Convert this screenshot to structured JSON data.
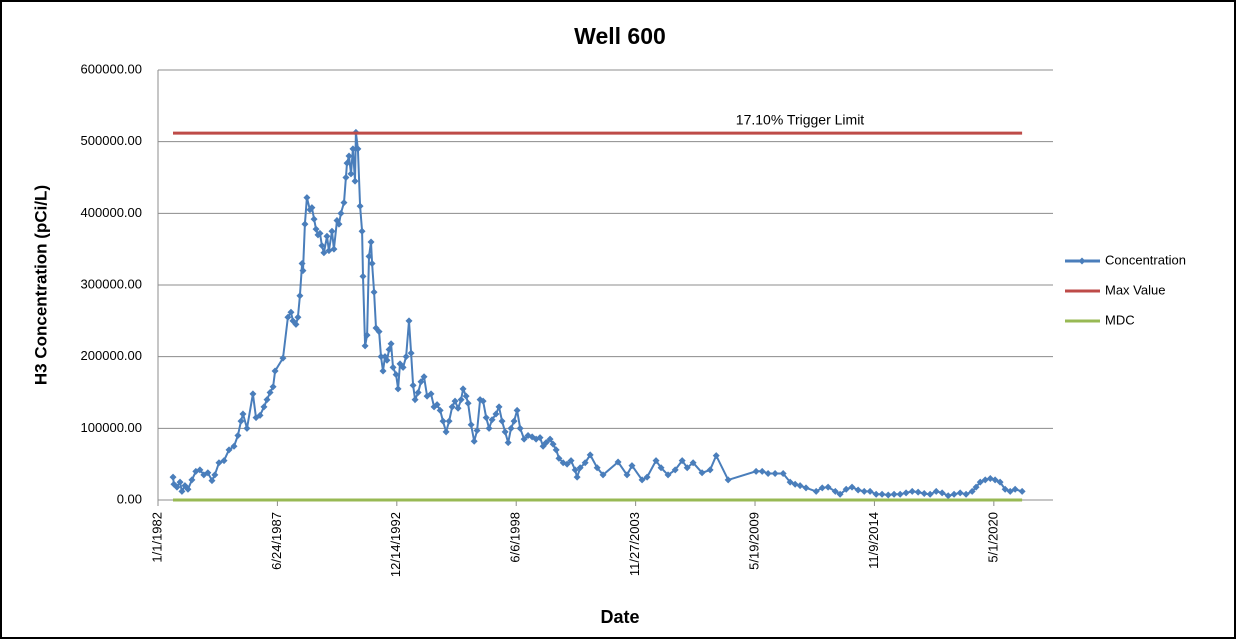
{
  "chart_data": {
    "type": "line",
    "title": "Well 600",
    "x_label": "Date",
    "y_label": "H3 Concentration (pCi/L)",
    "annotation": "17.10% Trigger Limit",
    "grid": true,
    "legend": "right",
    "xlim": [
      "1982-01-01",
      "2023-01-17"
    ],
    "xticks": [
      {
        "value": "1982-01-01",
        "label": "1/1/1982"
      },
      {
        "value": "1987-06-24",
        "label": "6/24/1987"
      },
      {
        "value": "1992-12-14",
        "label": "12/14/1992"
      },
      {
        "value": "1998-06-06",
        "label": "6/6/1998"
      },
      {
        "value": "2003-11-27",
        "label": "11/27/2003"
      },
      {
        "value": "2009-05-19",
        "label": "5/19/2009"
      },
      {
        "value": "2014-11-09",
        "label": "11/9/2014"
      },
      {
        "value": "2020-05-01",
        "label": "5/1/2020"
      }
    ],
    "ylim": [
      0,
      600000
    ],
    "yticks": [
      {
        "value": 0,
        "label": "0.00"
      },
      {
        "value": 100000,
        "label": "100000.00"
      },
      {
        "value": 200000,
        "label": "200000.00"
      },
      {
        "value": 300000,
        "label": "300000.00"
      },
      {
        "value": 400000,
        "label": "400000.00"
      },
      {
        "value": 500000,
        "label": "500000.00"
      },
      {
        "value": 600000,
        "label": "600000.00"
      }
    ],
    "series": [
      {
        "name": "Concentration",
        "color": "#4a7ebb",
        "markers": true,
        "x": [
          "1982-09-10",
          "1982-09-25",
          "1982-11-15",
          "1983-01-05",
          "1983-02-06",
          "1983-03-28",
          "1983-05-18",
          "1983-07-23",
          "1983-09-27",
          "1983-12-04",
          "1984-02-08",
          "1984-04-15",
          "1984-06-23",
          "1984-08-10",
          "1984-10-18",
          "1985-01-11",
          "1985-04-05",
          "1985-06-27",
          "1985-09-01",
          "1985-10-22",
          "1985-11-24",
          "1986-01-30",
          "1986-05-10",
          "1986-07-01",
          "1986-09-06",
          "1986-11-11",
          "1987-01-01",
          "1987-02-21",
          "1987-04-13",
          "1987-05-16",
          "1987-09-25",
          "1987-12-17",
          "1988-02-06",
          "1988-03-10",
          "1988-04-30",
          "1988-06-02",
          "1988-07-05",
          "1988-08-10",
          "1988-08-25",
          "1988-09-27",
          "1988-10-30",
          "1988-12-20",
          "1989-01-22",
          "1989-02-27",
          "1989-04-01",
          "1989-05-04",
          "1989-06-06",
          "1989-07-09",
          "1989-08-11",
          "1989-10-01",
          "1989-11-03",
          "1989-12-24",
          "1990-01-26",
          "1990-03-18",
          "1990-04-20",
          "1990-05-23",
          "1990-07-13",
          "1990-08-15",
          "1990-09-02",
          "1990-10-05",
          "1990-11-07",
          "1990-12-10",
          "1991-01-14",
          "1991-01-29",
          "1991-03-03",
          "1991-04-09",
          "1991-05-12",
          "1991-05-27",
          "1991-07-02",
          "1991-08-04",
          "1991-09-06",
          "1991-10-09",
          "1991-10-27",
          "1991-11-29",
          "1992-01-01",
          "1992-02-21",
          "1992-03-25",
          "1992-04-27",
          "1992-05-30",
          "1992-07-02",
          "1992-08-07",
          "1992-09-09",
          "1992-10-12",
          "1992-12-02",
          "1993-01-04",
          "1993-02-06",
          "1993-03-29",
          "1993-05-19",
          "1993-07-06",
          "1993-08-11",
          "1993-09-13",
          "1993-10-16",
          "1993-12-06",
          "1994-01-23",
          "1994-03-15",
          "1994-05-05",
          "1994-07-10",
          "1994-08-30",
          "1994-10-20",
          "1994-12-10",
          "1995-01-27",
          "1995-03-19",
          "1995-05-09",
          "1995-06-29",
          "1995-08-16",
          "1995-10-06",
          "1995-11-26",
          "1995-12-29",
          "1996-02-18",
          "1996-03-22",
          "1996-05-12",
          "1996-07-02",
          "1996-08-19",
          "1996-10-09",
          "1996-11-29",
          "1997-01-19",
          "1997-03-08",
          "1997-04-28",
          "1997-07-02",
          "1997-08-22",
          "1997-10-12",
          "1997-12-02",
          "1998-01-22",
          "1998-03-11",
          "1998-05-01",
          "1998-06-21",
          "1998-08-11",
          "1998-10-16",
          "1998-12-21",
          "1999-02-28",
          "1999-05-05",
          "1999-07-10",
          "1999-08-30",
          "1999-10-20",
          "1999-12-25",
          "2000-02-14",
          "2000-04-05",
          "2000-05-22",
          "2000-07-31",
          "2000-10-05",
          "2000-12-10",
          "2001-02-17",
          "2001-03-22",
          "2001-05-12",
          "2001-08-04",
          "2001-10-27",
          "2002-02-21",
          "2002-05-30",
          "2003-02-06",
          "2003-07-06",
          "2003-09-27",
          "2004-03-14",
          "2004-06-06",
          "2004-11-03",
          "2005-01-26",
          "2005-05-23",
          "2005-09-20",
          "2006-01-15",
          "2006-04-09",
          "2006-07-17",
          "2006-12-14",
          "2007-04-28",
          "2007-08-08",
          "2008-02-24",
          "2009-06-06",
          "2009-09-16",
          "2009-12-24",
          "2010-04-20",
          "2010-09-02",
          "2010-12-28",
          "2011-03-22",
          "2011-06-13",
          "2011-09-20",
          "2012-03-08",
          "2012-06-18",
          "2012-09-24",
          "2013-01-23",
          "2013-04-13",
          "2013-07-24",
          "2013-10-30",
          "2014-02-09",
          "2014-05-22",
          "2014-08-28",
          "2014-12-08",
          "2015-03-17",
          "2015-06-28",
          "2015-10-04",
          "2016-01-14",
          "2016-04-22",
          "2016-08-03",
          "2016-11-10",
          "2017-02-20",
          "2017-05-30",
          "2017-09-09",
          "2017-12-17",
          "2018-03-29",
          "2018-07-05",
          "2018-10-15",
          "2019-01-22",
          "2019-05-04",
          "2019-07-09",
          "2019-09-16",
          "2019-12-09",
          "2020-03-03",
          "2020-05-22",
          "2020-08-14",
          "2020-11-06",
          "2021-01-30",
          "2021-04-23",
          "2021-08-18"
        ],
        "values": [
          32000,
          22000,
          18000,
          25000,
          12000,
          20000,
          15000,
          28000,
          40000,
          42000,
          35000,
          38000,
          27000,
          35000,
          52000,
          55000,
          70000,
          75000,
          90000,
          110000,
          120000,
          100000,
          148000,
          115000,
          118000,
          130000,
          140000,
          150000,
          158000,
          180000,
          198000,
          255000,
          262000,
          250000,
          245000,
          255000,
          285000,
          330000,
          320000,
          385000,
          422000,
          405000,
          408000,
          392000,
          378000,
          370000,
          372000,
          355000,
          345000,
          368000,
          348000,
          375000,
          350000,
          390000,
          385000,
          400000,
          415000,
          450000,
          470000,
          480000,
          455000,
          490000,
          445000,
          513000,
          490000,
          410000,
          375000,
          312000,
          215000,
          230000,
          340000,
          360000,
          330000,
          290000,
          240000,
          235000,
          200000,
          180000,
          200000,
          195000,
          210000,
          218000,
          185000,
          175000,
          155000,
          190000,
          185000,
          200000,
          250000,
          205000,
          160000,
          140000,
          150000,
          165000,
          172000,
          145000,
          148000,
          130000,
          133000,
          125000,
          110000,
          95000,
          110000,
          130000,
          138000,
          128000,
          140000,
          155000,
          145000,
          135000,
          105000,
          82000,
          97000,
          140000,
          138000,
          115000,
          100000,
          112000,
          120000,
          130000,
          110000,
          95000,
          80000,
          100000,
          110000,
          125000,
          100000,
          85000,
          90000,
          88000,
          85000,
          87000,
          75000,
          80000,
          85000,
          78000,
          70000,
          58000,
          52000,
          50000,
          55000,
          42000,
          32000,
          45000,
          52000,
          63000,
          45000,
          35000,
          53000,
          35000,
          48000,
          28000,
          32000,
          55000,
          45000,
          35000,
          42000,
          55000,
          45000,
          52000,
          38000,
          42000,
          62000,
          28000,
          40000,
          40000,
          37000,
          37000,
          37000,
          25000,
          22000,
          20000,
          17000,
          12000,
          17000,
          18000,
          12000,
          8000,
          15000,
          18000,
          14000,
          12000,
          12000,
          8000,
          8000,
          7000,
          8000,
          8000,
          10000,
          12000,
          11000,
          9000,
          8000,
          12000,
          10000,
          6000,
          8000,
          10000,
          8000,
          12000,
          18000,
          25000,
          28000,
          30000,
          28000,
          25000,
          15000,
          12000,
          15000,
          12000
        ]
      },
      {
        "name": "Max Value",
        "color": "#be4b48",
        "markers": false,
        "x": [
          "1982-09-10",
          "2021-08-18"
        ],
        "values": [
          512000,
          512000
        ]
      },
      {
        "name": "MDC",
        "color": "#98b954",
        "markers": false,
        "x": [
          "1982-09-10",
          "2021-08-18"
        ],
        "values": [
          0,
          0
        ]
      }
    ]
  }
}
